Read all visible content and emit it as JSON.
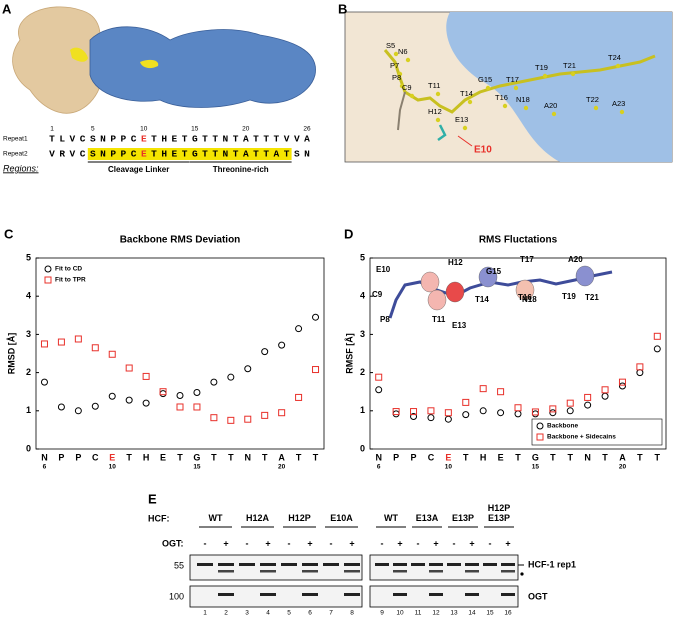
{
  "panel_labels": [
    "A",
    "B",
    "C",
    "D",
    "E"
  ],
  "panel_a": {
    "repeat1": {
      "name": "Repeat1",
      "sequence": [
        "T",
        "L",
        "V",
        "C",
        "S",
        "N",
        "P",
        "P",
        "C",
        "E",
        "T",
        "H",
        "E",
        "T",
        "G",
        "T",
        "T",
        "N",
        "T",
        "A",
        "T",
        "T",
        "T",
        "V",
        "V",
        "A"
      ]
    },
    "repeat2": {
      "name": "Repeat2",
      "sequence": [
        "V",
        "R",
        "V",
        "C",
        "S",
        "N",
        "P",
        "P",
        "C",
        "E",
        "T",
        "H",
        "E",
        "T",
        "G",
        "T",
        "T",
        "N",
        "T",
        "A",
        "T",
        "T",
        "A",
        "T",
        "S",
        "N"
      ]
    },
    "positions": [
      1,
      5,
      10,
      15,
      20,
      26
    ],
    "regions_label": "Regions:",
    "regions": [
      "Cleavage Linker",
      "Threonine-rich"
    ]
  },
  "panel_b": {
    "residues": [
      "S5",
      "N6",
      "P7",
      "P8",
      "C9",
      "T11",
      "H12",
      "E13",
      "T14",
      "G15",
      "T16",
      "T17",
      "N18",
      "T19",
      "A20",
      "T21",
      "T22",
      "A23",
      "T24"
    ],
    "highlight": "E10"
  },
  "chart_data": [
    {
      "type": "scatter",
      "title": "Backbone  RMS Deviation",
      "y_label": "RMSD [Å]",
      "categories": [
        "N",
        "P",
        "P",
        "C",
        "E",
        "T",
        "H",
        "E",
        "T",
        "G",
        "T",
        "T",
        "N",
        "T",
        "A",
        "T",
        "T"
      ],
      "residue_numbers": [
        6,
        null,
        null,
        null,
        10,
        null,
        null,
        null,
        null,
        15,
        null,
        null,
        null,
        null,
        20,
        null,
        null
      ],
      "highlight": {
        "category": 4,
        "color": "#e8302a"
      },
      "ylim": [
        0,
        5
      ],
      "yticks": [
        0,
        1,
        2,
        3,
        4,
        5
      ],
      "legend": "top-left",
      "series": [
        {
          "name": "Fit to CD",
          "color": "#000000",
          "marker": "circle",
          "values": [
            1.75,
            1.1,
            1.0,
            1.12,
            1.38,
            1.28,
            1.2,
            1.45,
            1.4,
            1.48,
            1.75,
            1.88,
            2.1,
            2.55,
            2.72,
            3.15,
            3.45
          ]
        },
        {
          "name": "Fit to TPR",
          "color": "#e8302a",
          "marker": "square",
          "values": [
            2.75,
            2.8,
            2.88,
            2.65,
            2.48,
            2.12,
            1.9,
            1.5,
            1.1,
            1.1,
            0.82,
            0.75,
            0.78,
            0.88,
            0.95,
            1.35,
            2.08
          ]
        }
      ]
    },
    {
      "type": "scatter",
      "title": "RMS Fluctations",
      "y_label": "RMSF [Å]",
      "categories": [
        "N",
        "P",
        "P",
        "C",
        "E",
        "T",
        "H",
        "E",
        "T",
        "G",
        "T",
        "T",
        "N",
        "T",
        "A",
        "T",
        "T"
      ],
      "residue_numbers": [
        6,
        null,
        null,
        null,
        10,
        null,
        null,
        null,
        null,
        15,
        null,
        null,
        null,
        null,
        20,
        null,
        null
      ],
      "highlight": {
        "category": 4,
        "color": "#e8302a"
      },
      "ylim": [
        0,
        5
      ],
      "yticks": [
        0,
        1,
        2,
        3,
        4,
        5
      ],
      "legend": "bottom-right",
      "annotations": [
        "E10",
        "H12",
        "G15",
        "T17",
        "A20",
        "C9",
        "T14",
        "N18",
        "T21",
        "P8",
        "T11",
        "E13",
        "T16",
        "T19"
      ],
      "series": [
        {
          "name": "Backbone",
          "color": "#000000",
          "marker": "circle",
          "values": [
            1.55,
            0.92,
            0.85,
            0.82,
            0.78,
            0.9,
            1.0,
            0.95,
            0.92,
            0.92,
            0.95,
            1.0,
            1.15,
            1.38,
            1.65,
            2.0,
            2.62
          ]
        },
        {
          "name": "Backbone + Sidecains",
          "color": "#e8302a",
          "marker": "square",
          "values": [
            1.88,
            0.98,
            0.98,
            1.0,
            0.95,
            1.22,
            1.58,
            1.5,
            1.08,
            0.97,
            1.05,
            1.2,
            1.35,
            1.55,
            1.75,
            2.15,
            2.95
          ]
        }
      ]
    }
  ],
  "panel_e": {
    "hcf_label": "HCF:",
    "ogt_label": "OGT:",
    "groups_left": [
      "WT",
      "H12A",
      "H12P",
      "E10A"
    ],
    "groups_right": [
      "WT",
      "E13A",
      "E13P",
      "H12P\nE13P"
    ],
    "ogt_signs": [
      "-",
      "+",
      "-",
      "+",
      "-",
      "+",
      "-",
      "+",
      "-",
      "+",
      "-",
      "+",
      "-",
      "+",
      "-",
      "+"
    ],
    "markers": [
      "55",
      "100"
    ],
    "bands": [
      "HCF-1 rep1",
      "OGT"
    ],
    "lanes": [
      1,
      2,
      3,
      4,
      5,
      6,
      7,
      8,
      9,
      10,
      11,
      12,
      13,
      14,
      15,
      16
    ]
  }
}
